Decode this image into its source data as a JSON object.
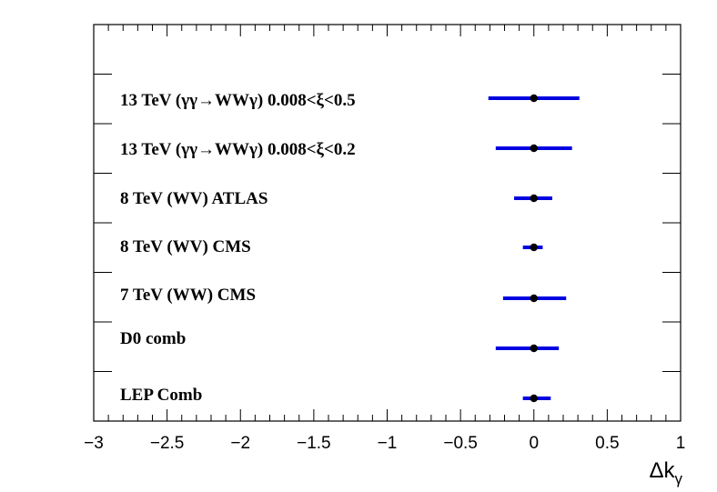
{
  "chart_data": {
    "type": "scatter",
    "variant": "horizontal-error-bars",
    "xlabel": "Δk",
    "xlabel_subscript": "γ",
    "xlim": [
      -3,
      1
    ],
    "xticks": [
      -3,
      -2.5,
      -2,
      -1.5,
      -1,
      -0.5,
      0,
      0.5,
      1
    ],
    "xtick_labels": [
      "−3",
      "−2.5",
      "−2",
      "−1.5",
      "−1",
      "−0.5",
      "0",
      "0.5",
      "1"
    ],
    "grid": false,
    "marker_color": "#000000",
    "error_bar_color": "#0000e0",
    "entries": [
      {
        "label": "13 TeV (γγ→WWγ) 0.008<ξ<0.5",
        "value": 0,
        "low": -0.31,
        "high": 0.31
      },
      {
        "label": "13 TeV (γγ→WWγ) 0.008<ξ<0.2",
        "value": 0,
        "low": -0.26,
        "high": 0.26
      },
      {
        "label": "8 TeV (WV) ATLAS",
        "value": 0,
        "low": -0.135,
        "high": 0.125
      },
      {
        "label": "8 TeV (WV) CMS",
        "value": 0,
        "low": -0.075,
        "high": 0.06
      },
      {
        "label": "7 TeV (WW) CMS",
        "value": 0,
        "low": -0.21,
        "high": 0.22
      },
      {
        "label": "D0 comb",
        "value": 0,
        "low": -0.26,
        "high": 0.17
      },
      {
        "label": "LEP Comb",
        "value": 0,
        "low": -0.075,
        "high": 0.115
      }
    ]
  }
}
